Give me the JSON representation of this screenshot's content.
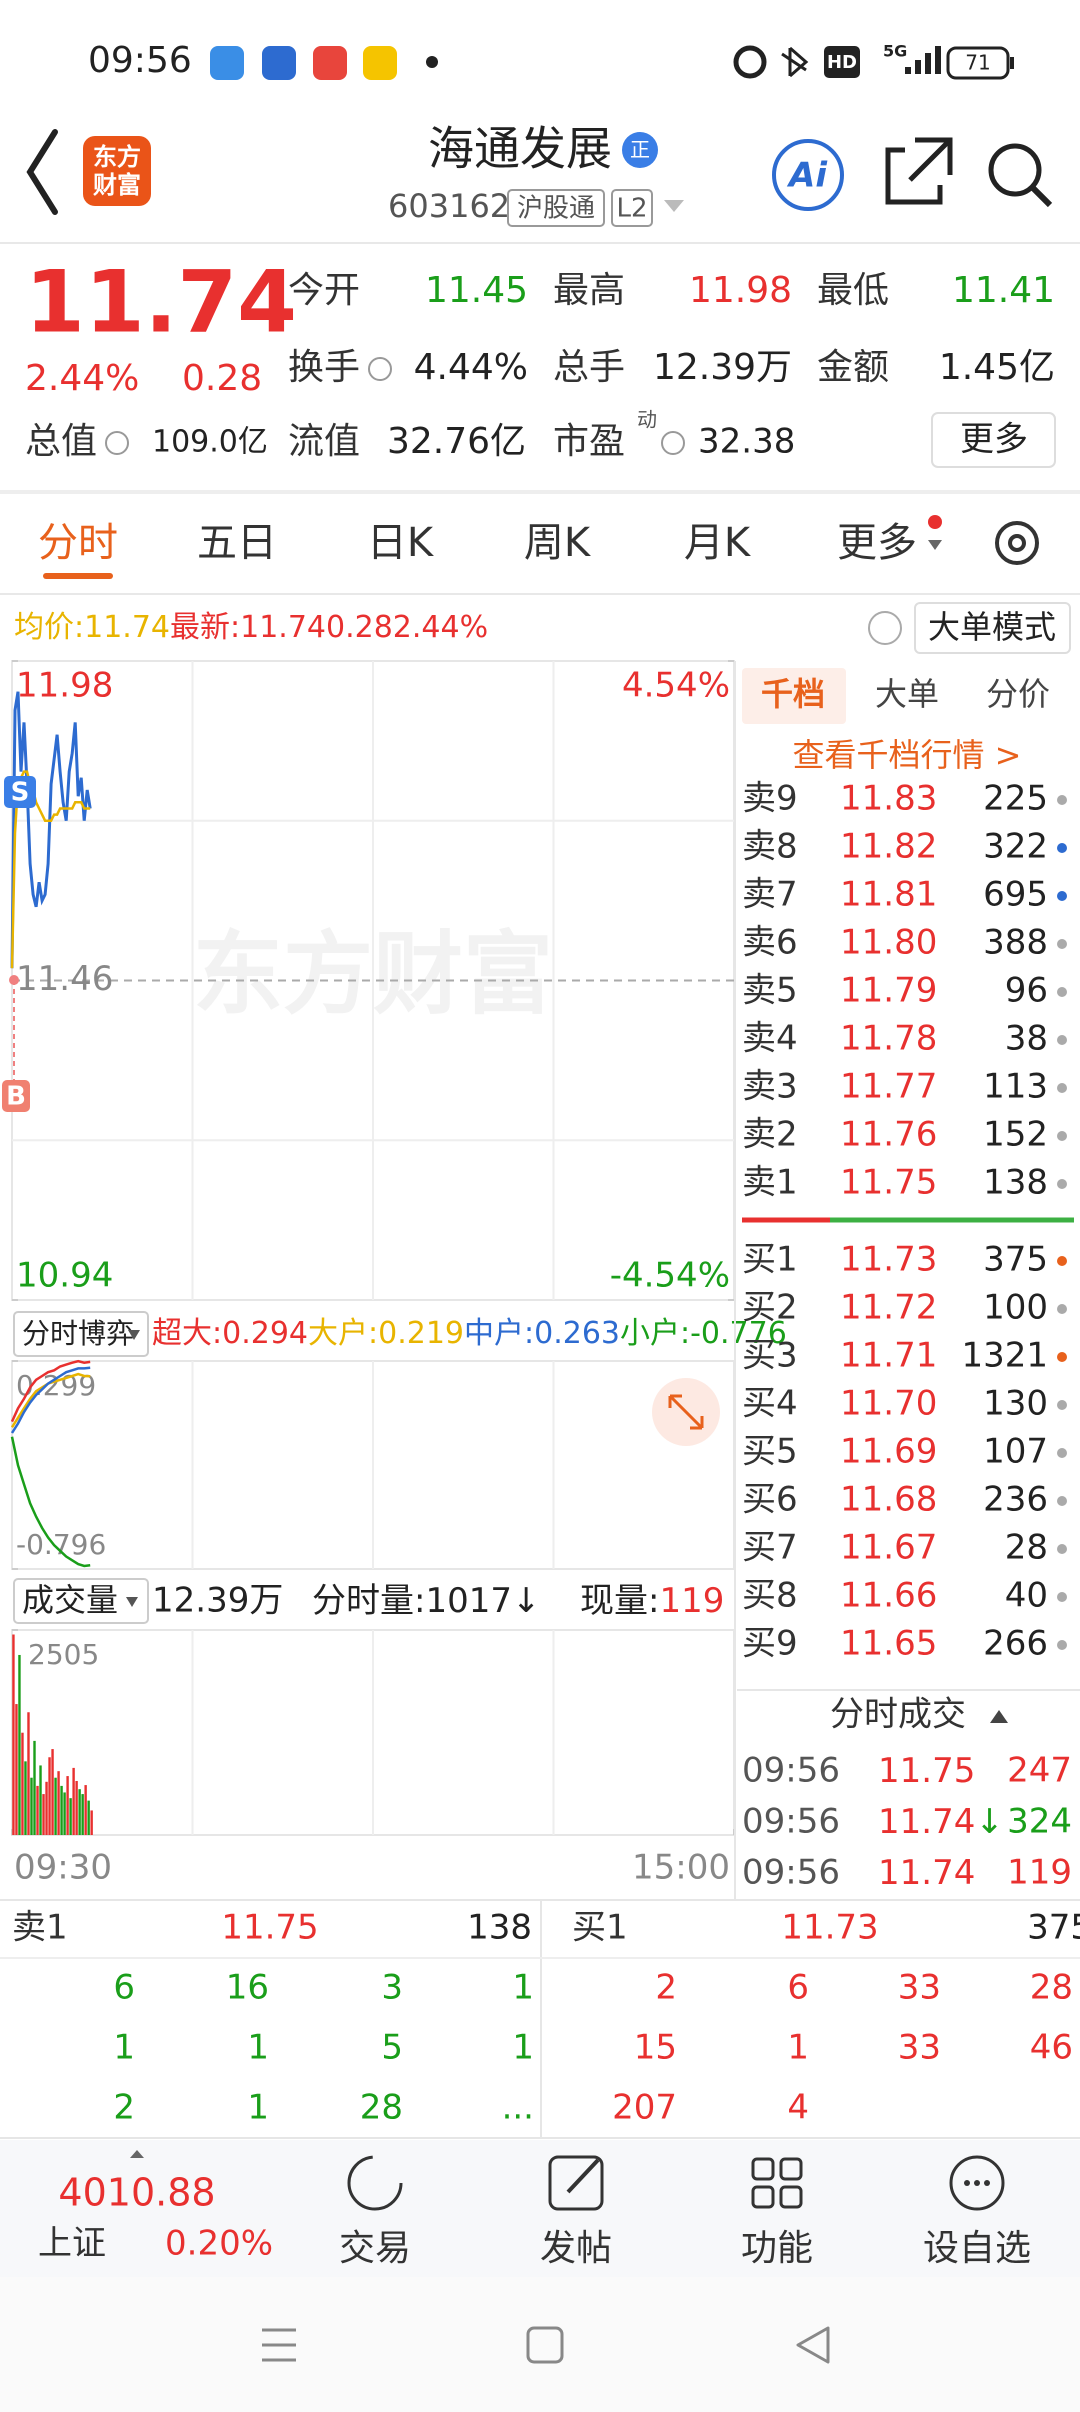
{
  "status_bar": {
    "time": "09:56",
    "hd": "HD",
    "network": "5G",
    "battery": "71"
  },
  "header": {
    "logo_lines": [
      "东方",
      "财富"
    ],
    "title": "海通发展",
    "badge": "正",
    "code": "603162",
    "tags": [
      "沪股通",
      "L2"
    ],
    "ai": "Ai"
  },
  "quote": {
    "price": "11.74",
    "change_pct": "2.44%",
    "change": "0.28",
    "stats": [
      [
        {
          "label": "今开",
          "value": "11.45"
        },
        {
          "label": "最高",
          "value": "11.98"
        },
        {
          "label": "最低",
          "value": "11.41"
        }
      ],
      [
        {
          "label": "换手",
          "value": "4.44%"
        },
        {
          "label": "总手",
          "value": "12.39万"
        },
        {
          "label": "金额",
          "value": "1.45亿"
        }
      ],
      [
        {
          "label": "总值",
          "value": "109.0亿"
        },
        {
          "label": "流值",
          "value": "32.76亿"
        },
        {
          "label": "市盈",
          "sup": "动",
          "value": "32.38"
        }
      ]
    ],
    "more": "更多"
  },
  "tabs": [
    "分时",
    "五日",
    "日K",
    "周K",
    "月K",
    "更多"
  ],
  "mode_button": "大单模式",
  "watermark": "东方财富",
  "markers": {
    "sell": "S",
    "buy": "B"
  },
  "chart_data": [
    {
      "type": "line",
      "xlim": [
        0,
        240
      ],
      "x": [
        0,
        1,
        2,
        3,
        4,
        5,
        6,
        7,
        8,
        9,
        10,
        11,
        12,
        13,
        14,
        15,
        16,
        17,
        18,
        19,
        20,
        21,
        22,
        23,
        24,
        25,
        26
      ],
      "ylim": [
        10.94,
        11.98
      ],
      "yticks": [
        10.94,
        11.46,
        11.98
      ],
      "y2lim": [
        -4.54,
        4.54
      ],
      "y2ticks": [
        {
          "value": -4.54,
          "label": "-4.54%"
        },
        {
          "value": 4.54,
          "label": "4.54%"
        }
      ],
      "series": [
        {
          "name": "最新:",
          "color": "#2d6bd0",
          "values": [
            11.48,
            11.9,
            11.93,
            11.8,
            11.88,
            11.78,
            11.65,
            11.6,
            11.58,
            11.62,
            11.59,
            11.6,
            11.65,
            11.78,
            11.82,
            11.86,
            11.8,
            11.75,
            11.72,
            11.8,
            11.83,
            11.88,
            11.76,
            11.79,
            11.72,
            11.77,
            11.74
          ]
        },
        {
          "name": "均价:",
          "color": "#e8b400",
          "values": [
            11.48,
            11.7,
            11.78,
            11.79,
            11.8,
            11.8,
            11.78,
            11.77,
            11.75,
            11.74,
            11.73,
            11.72,
            11.72,
            11.72,
            11.73,
            11.73,
            11.74,
            11.74,
            11.74,
            11.74,
            11.74,
            11.75,
            11.75,
            11.75,
            11.74,
            11.74,
            11.74
          ]
        }
      ]
    },
    {
      "type": "line",
      "title": "分时博弈",
      "xlim": [
        0,
        240
      ],
      "x": [
        0,
        2,
        4,
        6,
        8,
        10,
        12,
        14,
        16,
        18,
        20,
        22,
        24,
        26
      ],
      "ylim": [
        -0.796,
        0.299
      ],
      "yticks": [
        -0.796,
        0.299
      ],
      "series": [
        {
          "name": "超大:",
          "color": "#e8302f",
          "values": [
            -0.02,
            0.05,
            0.1,
            0.16,
            0.2,
            0.22,
            0.24,
            0.25,
            0.27,
            0.28,
            0.29,
            0.298,
            0.29,
            0.294
          ]
        },
        {
          "name": "大户:",
          "color": "#e8b400",
          "values": [
            -0.05,
            0.0,
            0.05,
            0.1,
            0.14,
            0.16,
            0.18,
            0.19,
            0.2,
            0.21,
            0.22,
            0.23,
            0.22,
            0.219
          ]
        },
        {
          "name": "中户:",
          "color": "#2d6bd0",
          "values": [
            -0.08,
            -0.03,
            0.03,
            0.08,
            0.12,
            0.15,
            0.18,
            0.2,
            0.22,
            0.24,
            0.25,
            0.26,
            0.26,
            0.263
          ]
        },
        {
          "name": "小户:",
          "color": "#1a9e1a",
          "values": [
            -0.1,
            -0.25,
            -0.35,
            -0.45,
            -0.52,
            -0.58,
            -0.63,
            -0.67,
            -0.7,
            -0.73,
            -0.75,
            -0.77,
            -0.78,
            -0.776
          ]
        }
      ]
    },
    {
      "type": "bar",
      "title": "成交量",
      "total": "12.39万",
      "minute_label": "分时量:",
      "minute_volume": "1017",
      "minute_arrow": "↓",
      "current_label": "现量:",
      "current": "119",
      "xlim": [
        0,
        240
      ],
      "xticks": [
        {
          "value": 0,
          "label": "09:30"
        },
        {
          "value": 240,
          "label": "15:00"
        }
      ],
      "ylim": [
        0,
        2505
      ],
      "yticks": [
        2505
      ],
      "x": [
        0,
        1,
        2,
        3,
        4,
        5,
        6,
        7,
        8,
        9,
        10,
        11,
        12,
        13,
        14,
        15,
        16,
        17,
        18,
        19,
        20,
        21,
        22,
        23,
        24,
        25,
        26
      ],
      "values": [
        2450,
        1600,
        2200,
        1250,
        900,
        1500,
        700,
        1150,
        600,
        850,
        500,
        650,
        950,
        1050,
        700,
        780,
        600,
        520,
        720,
        450,
        820,
        660,
        560,
        500,
        610,
        420,
        300
      ],
      "colors": [
        "#e8302f",
        "#e8302f",
        "#1a9e1a",
        "#e8302f",
        "#1a9e1a",
        "#e8302f",
        "#1a9e1a",
        "#1a9e1a",
        "#e8302f",
        "#1a9e1a",
        "#e8302f",
        "#e8302f",
        "#e8302f",
        "#e8302f",
        "#1a9e1a",
        "#e8302f",
        "#1a9e1a",
        "#1a9e1a",
        "#e8302f",
        "#1a9e1a",
        "#e8302f",
        "#e8302f",
        "#1a9e1a",
        "#1a9e1a",
        "#e8302f",
        "#1a9e1a",
        "#e8302f"
      ]
    }
  ],
  "order_book": {
    "tabs": [
      "千档",
      "大单",
      "分价"
    ],
    "link": "查看千档行情 >",
    "sells": [
      {
        "label": "卖9",
        "price": "11.83",
        "volume": "225",
        "dot": "#aaaaaa"
      },
      {
        "label": "卖8",
        "price": "11.82",
        "volume": "322",
        "dot": "#2d6bd0"
      },
      {
        "label": "卖7",
        "price": "11.81",
        "volume": "695",
        "dot": "#2d6bd0"
      },
      {
        "label": "卖6",
        "price": "11.80",
        "volume": "388",
        "dot": "#aaaaaa"
      },
      {
        "label": "卖5",
        "price": "11.79",
        "volume": "96",
        "dot": "#aaaaaa"
      },
      {
        "label": "卖4",
        "price": "11.78",
        "volume": "38",
        "dot": "#aaaaaa"
      },
      {
        "label": "卖3",
        "price": "11.77",
        "volume": "113",
        "dot": "#aaaaaa"
      },
      {
        "label": "卖2",
        "price": "11.76",
        "volume": "152",
        "dot": "#aaaaaa"
      },
      {
        "label": "卖1",
        "price": "11.75",
        "volume": "138",
        "dot": "#aaaaaa"
      }
    ],
    "buys": [
      {
        "label": "买1",
        "price": "11.73",
        "volume": "375",
        "dot": "#e8611c"
      },
      {
        "label": "买2",
        "price": "11.72",
        "volume": "100",
        "dot": "#aaaaaa"
      },
      {
        "label": "买3",
        "price": "11.71",
        "volume": "1321",
        "dot": "#e8611c"
      },
      {
        "label": "买4",
        "price": "11.70",
        "volume": "130",
        "dot": "#aaaaaa"
      },
      {
        "label": "买5",
        "price": "11.69",
        "volume": "107",
        "dot": "#aaaaaa"
      },
      {
        "label": "买6",
        "price": "11.68",
        "volume": "236",
        "dot": "#aaaaaa"
      },
      {
        "label": "买7",
        "price": "11.67",
        "volume": "28",
        "dot": "#aaaaaa"
      },
      {
        "label": "买8",
        "price": "11.66",
        "volume": "40",
        "dot": "#aaaaaa"
      },
      {
        "label": "买9",
        "price": "11.65",
        "volume": "266",
        "dot": "#aaaaaa"
      }
    ]
  },
  "trades": {
    "title": "分时成交",
    "rows": [
      {
        "time": "09:56",
        "price": "11.75",
        "arrow": "",
        "volume": "247",
        "color": "#e8302f"
      },
      {
        "time": "09:56",
        "price": "11.74",
        "arrow": "↓",
        "volume": "324",
        "color": "#1a9e1a"
      },
      {
        "time": "09:56",
        "price": "11.74",
        "arrow": "",
        "volume": "119",
        "color": "#e8302f"
      }
    ]
  },
  "queue": {
    "sell": {
      "label": "卖1",
      "price": "11.75",
      "volume": "138",
      "rows": [
        [
          "6",
          "16",
          "3",
          "1"
        ],
        [
          "1",
          "1",
          "5",
          "1"
        ],
        [
          "2",
          "1",
          "28",
          "..."
        ]
      ]
    },
    "buy": {
      "label": "买1",
      "price": "11.73",
      "volume": "375",
      "rows": [
        [
          "2",
          "6",
          "33",
          "28"
        ],
        [
          "15",
          "1",
          "33",
          "46"
        ],
        [
          "207",
          "4"
        ]
      ]
    }
  },
  "bottom_nav": {
    "index": {
      "value": "4010.88",
      "name": "上证",
      "change": "0.20%"
    },
    "items": [
      "交易",
      "发帖",
      "功能",
      "设自选"
    ]
  }
}
